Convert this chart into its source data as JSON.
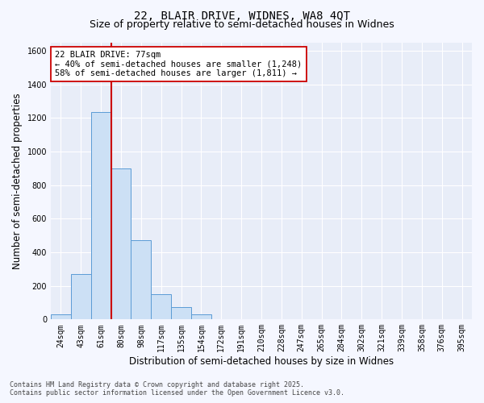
{
  "title1": "22, BLAIR DRIVE, WIDNES, WA8 4QT",
  "title2": "Size of property relative to semi-detached houses in Widnes",
  "xlabel": "Distribution of semi-detached houses by size in Widnes",
  "ylabel": "Number of semi-detached properties",
  "categories": [
    "24sqm",
    "43sqm",
    "61sqm",
    "80sqm",
    "98sqm",
    "117sqm",
    "135sqm",
    "154sqm",
    "172sqm",
    "191sqm",
    "210sqm",
    "228sqm",
    "247sqm",
    "265sqm",
    "284sqm",
    "302sqm",
    "321sqm",
    "339sqm",
    "358sqm",
    "376sqm",
    "395sqm"
  ],
  "values": [
    30,
    270,
    1235,
    900,
    470,
    150,
    75,
    30,
    0,
    0,
    0,
    0,
    0,
    0,
    0,
    0,
    0,
    0,
    0,
    0,
    0
  ],
  "bar_color": "#cce0f5",
  "bar_edge_color": "#5b9bd5",
  "vline_color": "#cc0000",
  "annotation_text": "22 BLAIR DRIVE: 77sqm\n← 40% of semi-detached houses are smaller (1,248)\n58% of semi-detached houses are larger (1,811) →",
  "annotation_box_color": "white",
  "annotation_box_edge": "#cc0000",
  "ylim": [
    0,
    1650
  ],
  "yticks": [
    0,
    200,
    400,
    600,
    800,
    1000,
    1200,
    1400,
    1600
  ],
  "footer": "Contains HM Land Registry data © Crown copyright and database right 2025.\nContains public sector information licensed under the Open Government Licence v3.0.",
  "bg_color": "#f5f7ff",
  "plot_bg_color": "#e8edf8",
  "grid_color": "#ffffff",
  "title_fontsize": 10,
  "subtitle_fontsize": 9,
  "tick_fontsize": 7,
  "label_fontsize": 8.5,
  "annot_fontsize": 7.5,
  "footer_fontsize": 6
}
